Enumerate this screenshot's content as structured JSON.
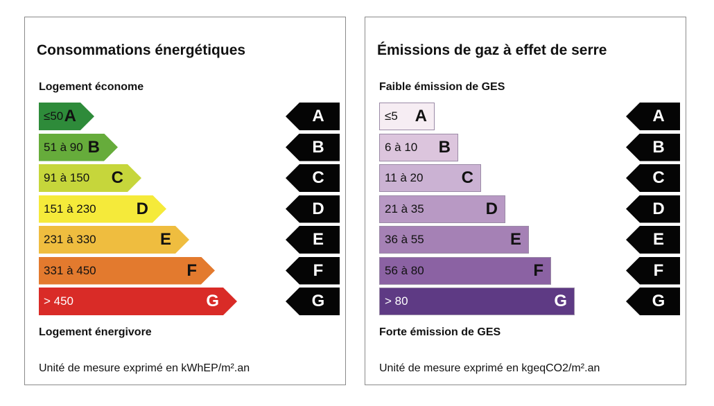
{
  "energy": {
    "title": "Consommations énergétiques",
    "top_label": "Logement économe",
    "bottom_label": "Logement énergivore",
    "unit": "Unité de mesure exprimé en kWhEP/m².an",
    "classes": [
      {
        "range": "≤50",
        "letter": "A",
        "color": "#2e8b3a",
        "text_color": "#111111"
      },
      {
        "range": "51 à 90",
        "letter": "B",
        "color": "#66ac3b",
        "text_color": "#111111"
      },
      {
        "range": "91 à 150",
        "letter": "C",
        "color": "#c6d63b",
        "text_color": "#111111"
      },
      {
        "range": "151 à 230",
        "letter": "D",
        "color": "#f5ea3a",
        "text_color": "#111111"
      },
      {
        "range": "231 à 330",
        "letter": "E",
        "color": "#efbd3f",
        "text_color": "#111111"
      },
      {
        "range": "331 à 450",
        "letter": "F",
        "color": "#e37a2e",
        "text_color": "#111111"
      },
      {
        "range": "> 450",
        "letter": "G",
        "color": "#d92b27",
        "text_color": "#ffffff"
      }
    ]
  },
  "ges": {
    "title": "Émissions de gaz à effet de serre",
    "top_label": "Faible émission de GES",
    "bottom_label": "Forte émission de GES",
    "unit": "Unité de mesure exprimé en kgeqCO2/m².an",
    "classes": [
      {
        "range": "≤5",
        "letter": "A",
        "color": "#f6edf3",
        "text_color": "#111111"
      },
      {
        "range": "6 à 10",
        "letter": "B",
        "color": "#dcc5dd",
        "text_color": "#111111"
      },
      {
        "range": "11 à 20",
        "letter": "C",
        "color": "#cbb2d3",
        "text_color": "#111111"
      },
      {
        "range": "21 à 35",
        "letter": "D",
        "color": "#b899c4",
        "text_color": "#111111"
      },
      {
        "range": "36 à 55",
        "letter": "E",
        "color": "#a581b5",
        "text_color": "#111111"
      },
      {
        "range": "56 à 80",
        "letter": "F",
        "color": "#8b62a3",
        "text_color": "#111111"
      },
      {
        "range": "> 80",
        "letter": "G",
        "color": "#5e3a84",
        "text_color": "#ffffff"
      }
    ]
  },
  "markers": [
    "A",
    "B",
    "C",
    "D",
    "E",
    "F",
    "G"
  ]
}
